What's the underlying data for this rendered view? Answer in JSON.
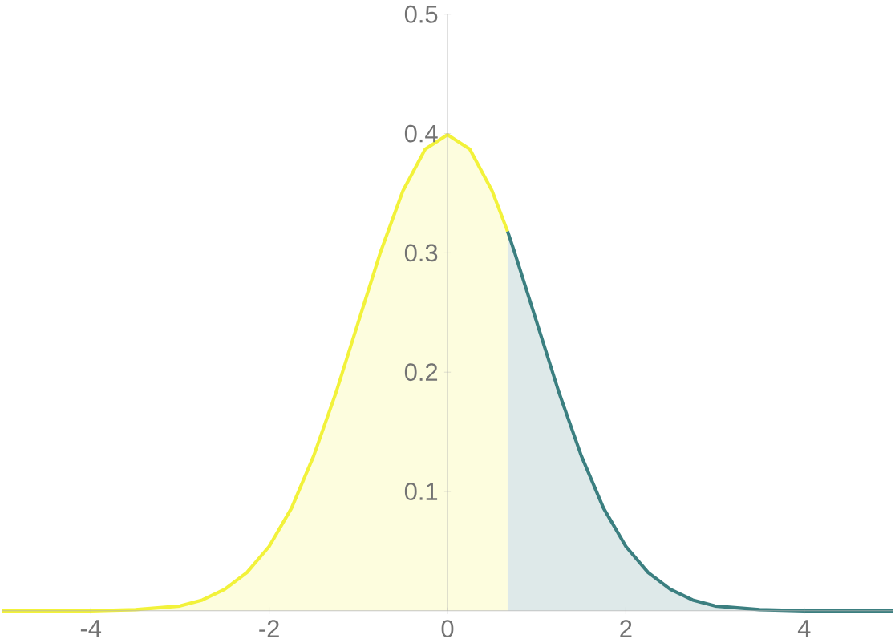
{
  "chart_data": {
    "type": "area",
    "xlim": [
      -5,
      5
    ],
    "ylim": [
      0,
      0.5
    ],
    "xticks": [
      -4,
      -2,
      0,
      2,
      4
    ],
    "yticks": [
      0.1,
      0.2,
      0.3,
      0.4,
      0.5
    ],
    "grid": false,
    "marker": "none",
    "line_style": "solid",
    "series": [
      {
        "color": "#f2f23a",
        "x": [
          -5,
          -4.5,
          -4,
          -3.5,
          -3,
          -2.75,
          -2.5,
          -2.25,
          -2,
          -1.75,
          -1.5,
          -1.25,
          -1,
          -0.75,
          -0.5,
          -0.25,
          0,
          0.25,
          0.5,
          0.674
        ],
        "values": [
          0,
          0,
          0,
          0.001,
          0.004,
          0.009,
          0.018,
          0.032,
          0.054,
          0.086,
          0.13,
          0.183,
          0.242,
          0.301,
          0.352,
          0.387,
          0.399,
          0.387,
          0.352,
          0.318
        ]
      },
      {
        "color": "#3b7f80",
        "x": [
          0.674,
          0.75,
          1,
          1.25,
          1.5,
          1.75,
          2,
          2.25,
          2.5,
          2.75,
          3,
          3.5,
          4,
          4.5,
          5
        ],
        "values": [
          0.318,
          0.301,
          0.242,
          0.183,
          0.13,
          0.086,
          0.054,
          0.032,
          0.018,
          0.009,
          0.004,
          0.001,
          0,
          0,
          0
        ]
      }
    ]
  }
}
